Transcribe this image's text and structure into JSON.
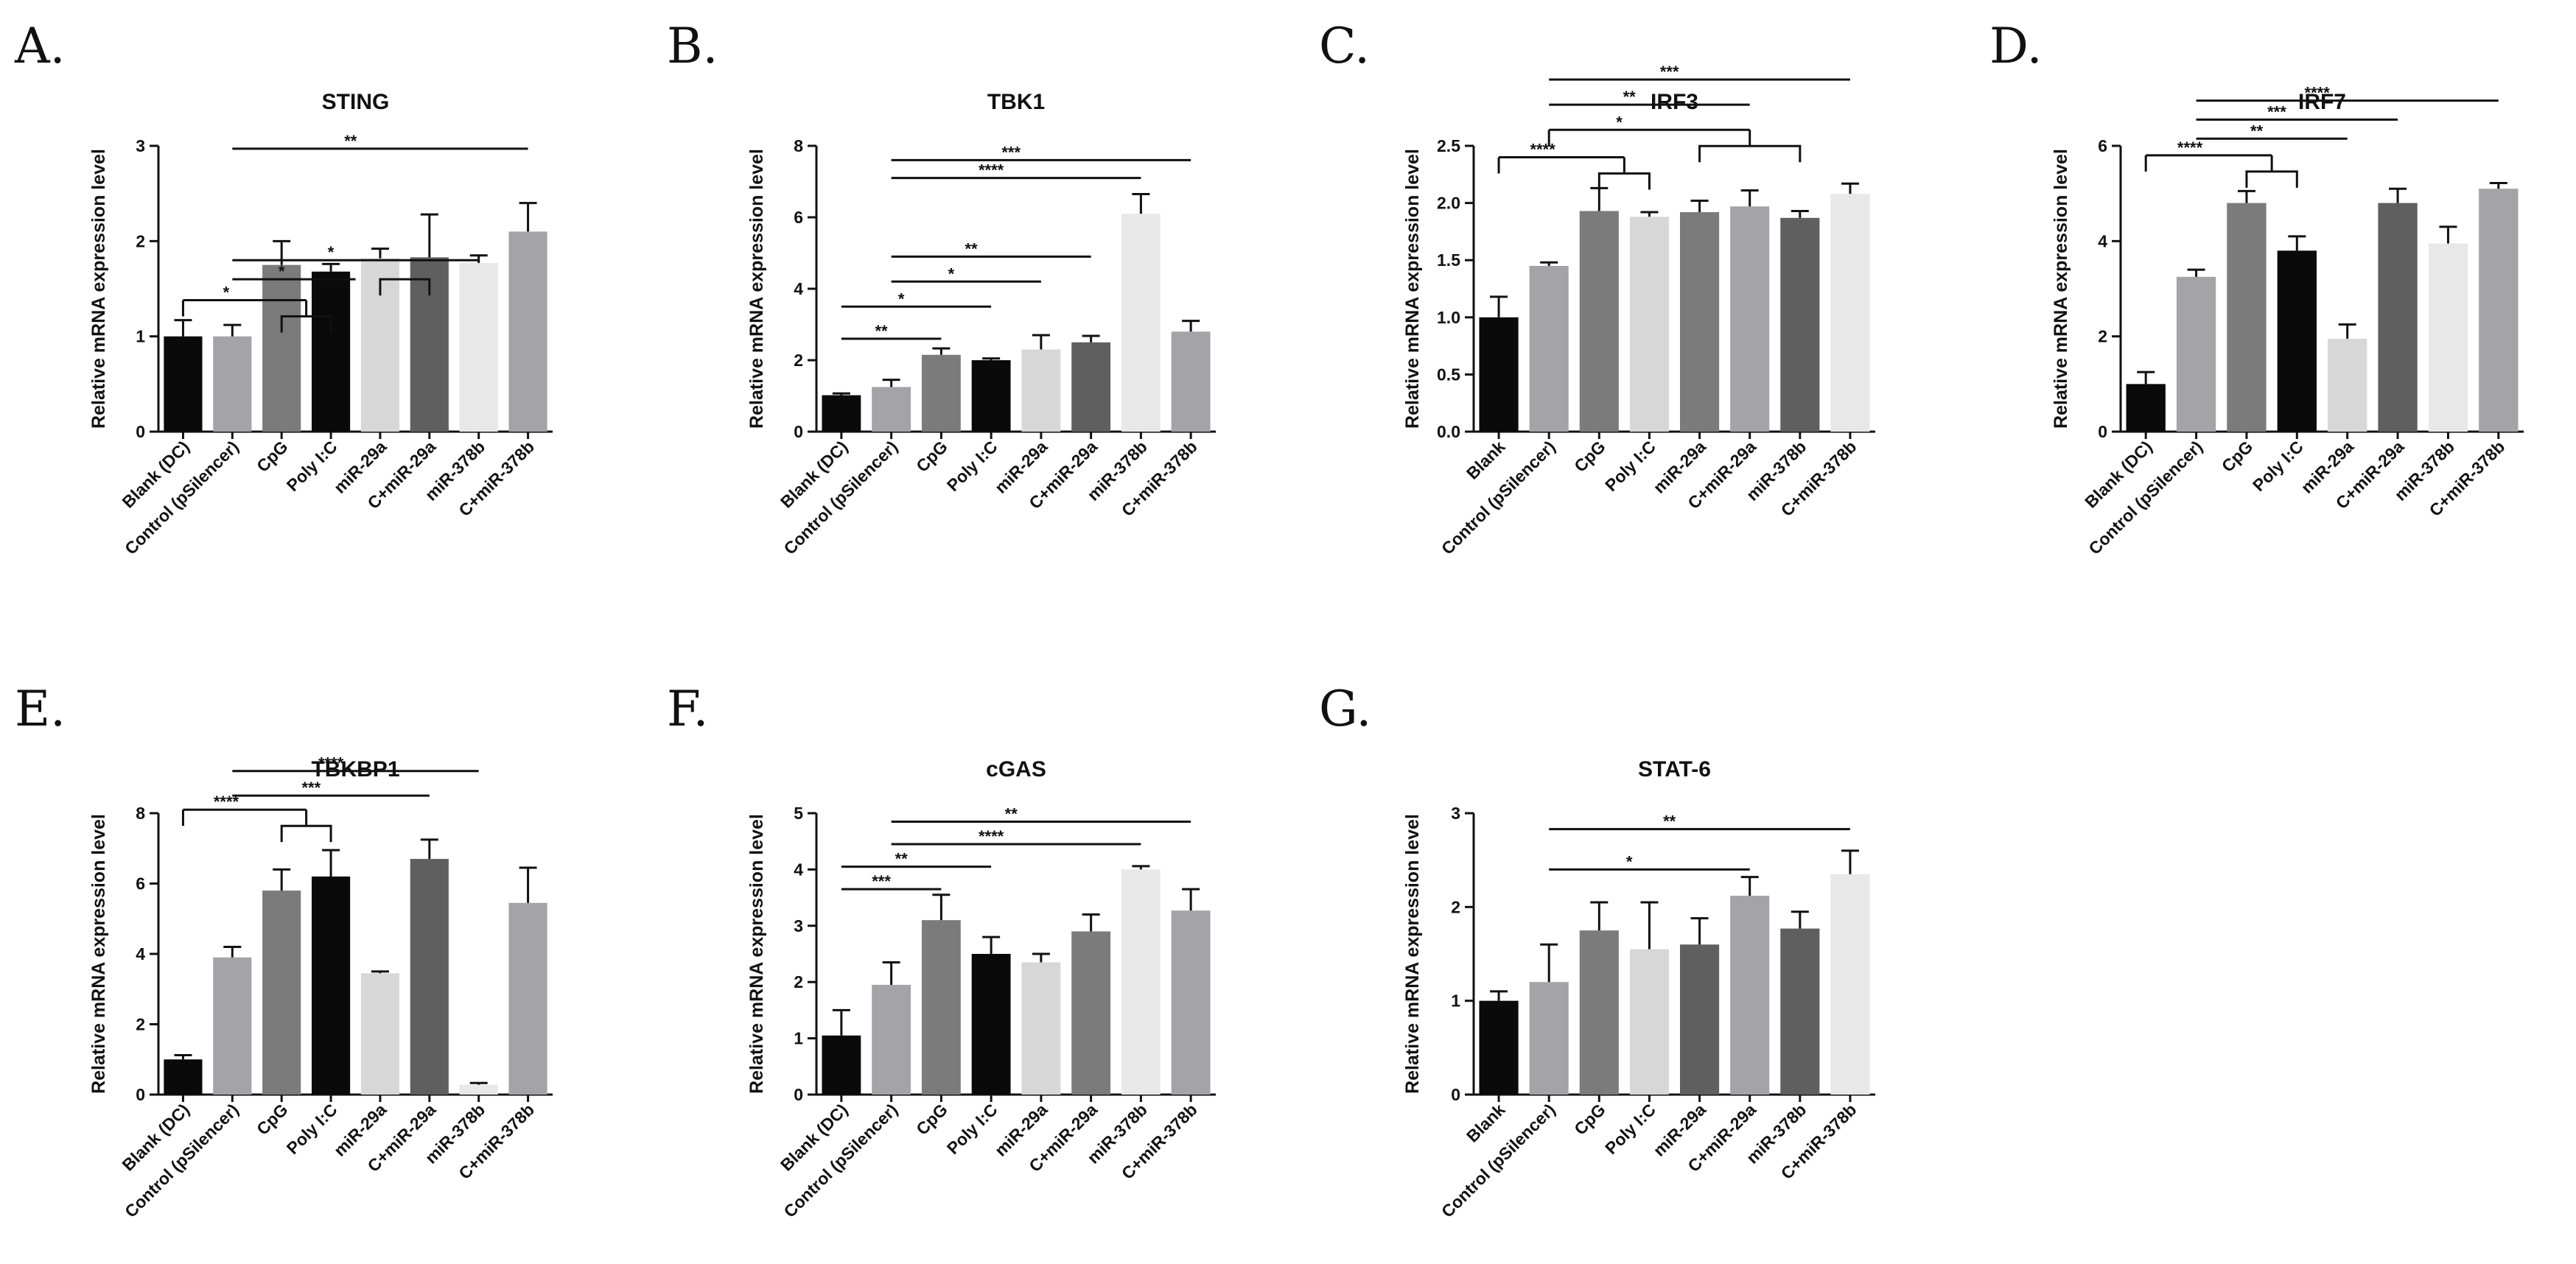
{
  "figure": {
    "colors": {
      "black": "#0a0a0a",
      "mid_gray": "#a3a3a8",
      "dark_gray": "#7b7b7b",
      "light_gray": "#d7d7d7",
      "charcoal": "#5f5f5f",
      "very_light": "#e8e8e8"
    }
  },
  "chart_data": [
    {
      "letter": "A.",
      "type": "bar",
      "title": "STING",
      "ylabel": "Relative mRNA expression level",
      "ylim": [
        0,
        3
      ],
      "yticks": [
        "0",
        "1",
        "2",
        "3"
      ],
      "categories": [
        "Blank (DC)",
        "Control (pSilencer)",
        "CpG",
        "Poly I:C",
        "miR-29a",
        "C+miR-29a",
        "miR-378b",
        "C+miR-378b"
      ],
      "values": [
        1.0,
        1.0,
        1.75,
        1.68,
        1.82,
        1.83,
        1.77,
        2.1
      ],
      "errors": [
        0.17,
        0.12,
        0.25,
        0.08,
        0.1,
        0.45,
        0.08,
        0.3
      ],
      "colors": [
        "#0a0a0a",
        "#a3a3a8",
        "#7b7b7b",
        "#0a0a0a",
        "#d7d7d7",
        "#5f5f5f",
        "#e8e8e8",
        "#a3a3a8"
      ],
      "significance": [
        {
          "type": "line",
          "from": 1,
          "to": 7,
          "y": 2.97,
          "label": "**"
        },
        {
          "type": "line",
          "from": 1,
          "to": 6,
          "y": 1.8,
          "label": "*"
        },
        {
          "type": "line",
          "from": 1,
          "to": 3.5,
          "y": 1.6,
          "label": "*"
        },
        {
          "type": "group",
          "a": [
            0,
            0
          ],
          "b": [
            2,
            3
          ],
          "y": 1.38,
          "label": "*"
        },
        {
          "type": "bracket",
          "from": 4,
          "to": 5,
          "y": 1.6
        }
      ]
    },
    {
      "letter": "B.",
      "type": "bar",
      "title": "TBK1",
      "ylabel": "Relative mRNA expression level",
      "ylim": [
        0,
        8
      ],
      "yticks": [
        "0",
        "2",
        "4",
        "6",
        "8"
      ],
      "categories": [
        "Blank (DC)",
        "Control (pSilencer)",
        "CpG",
        "Poly I:C",
        "miR-29a",
        "C+miR-29a",
        "miR-378b",
        "C+miR-378b"
      ],
      "values": [
        1.02,
        1.25,
        2.15,
        2.0,
        2.3,
        2.5,
        6.1,
        2.8
      ],
      "errors": [
        0.05,
        0.2,
        0.18,
        0.05,
        0.4,
        0.18,
        0.55,
        0.3
      ],
      "colors": [
        "#0a0a0a",
        "#a3a3a8",
        "#7b7b7b",
        "#0a0a0a",
        "#d7d7d7",
        "#5f5f5f",
        "#e8e8e8",
        "#a3a3a8"
      ],
      "significance": [
        {
          "type": "line",
          "from": 1,
          "to": 7,
          "y": 7.6,
          "label": "***"
        },
        {
          "type": "line",
          "from": 1,
          "to": 6,
          "y": 7.1,
          "label": "****"
        },
        {
          "type": "line",
          "from": 1,
          "to": 5,
          "y": 4.9,
          "label": "**"
        },
        {
          "type": "line",
          "from": 1,
          "to": 4,
          "y": 4.2,
          "label": "*"
        },
        {
          "type": "line",
          "from": 0,
          "to": 3,
          "y": 3.5,
          "label": "*"
        },
        {
          "type": "line",
          "from": 0,
          "to": 2,
          "y": 2.6,
          "label": "**"
        }
      ]
    },
    {
      "letter": "C.",
      "type": "bar",
      "title": "IRF3",
      "ylabel": "Relative mRNA expression level",
      "ylim": [
        0,
        2.5
      ],
      "yticks": [
        "0.0",
        "0.5",
        "1.0",
        "1.5",
        "2.0",
        "2.5"
      ],
      "categories": [
        "Blank",
        "Control (pSilencer)",
        "CpG",
        "Poly I:C",
        "miR-29a",
        "C+miR-29a",
        "miR-378b",
        "C+miR-378b"
      ],
      "values": [
        1.0,
        1.45,
        1.93,
        1.88,
        1.92,
        1.97,
        1.87,
        2.08
      ],
      "errors": [
        0.18,
        0.03,
        0.2,
        0.04,
        0.1,
        0.14,
        0.06,
        0.09
      ],
      "colors": [
        "#0a0a0a",
        "#a3a3a8",
        "#7b7b7b",
        "#d7d7d7",
        "#7b7b7b",
        "#a3a3a8",
        "#5f5f5f",
        "#e8e8e8"
      ],
      "significance": [
        {
          "type": "line",
          "from": 1,
          "to": 7,
          "y": 3.08,
          "label": "***"
        },
        {
          "type": "line",
          "from": 1,
          "to": 5,
          "y": 2.86,
          "label": "**"
        },
        {
          "type": "group",
          "a": [
            1,
            1
          ],
          "b": [
            4,
            6
          ],
          "y": 2.64,
          "label": "*"
        },
        {
          "type": "group",
          "a": [
            0,
            0
          ],
          "b": [
            2,
            3
          ],
          "y": 2.4,
          "label": "****"
        }
      ]
    },
    {
      "letter": "D.",
      "type": "bar",
      "title": "IRF7",
      "ylabel": "Relative mRNA expression level",
      "ylim": [
        0,
        6
      ],
      "yticks": [
        "0",
        "2",
        "4",
        "6"
      ],
      "categories": [
        "Blank (DC)",
        "Control (pSilencer)",
        "CpG",
        "Poly I:C",
        "miR-29a",
        "C+miR-29a",
        "miR-378b",
        "C+miR-378b"
      ],
      "values": [
        1.0,
        3.25,
        4.8,
        3.8,
        1.95,
        4.8,
        3.95,
        5.1
      ],
      "errors": [
        0.25,
        0.15,
        0.25,
        0.3,
        0.3,
        0.3,
        0.35,
        0.12
      ],
      "colors": [
        "#0a0a0a",
        "#a3a3a8",
        "#7b7b7b",
        "#0a0a0a",
        "#d7d7d7",
        "#5f5f5f",
        "#e8e8e8",
        "#a3a3a8"
      ],
      "significance": [
        {
          "type": "line",
          "from": 1,
          "to": 7,
          "y": 6.95,
          "label": "****"
        },
        {
          "type": "line",
          "from": 1,
          "to": 5,
          "y": 6.55,
          "label": "***"
        },
        {
          "type": "line",
          "from": 1,
          "to": 4,
          "y": 6.15,
          "label": "**"
        },
        {
          "type": "group",
          "a": [
            0,
            0
          ],
          "b": [
            2,
            3
          ],
          "y": 5.8,
          "label": "****"
        }
      ]
    },
    {
      "letter": "E.",
      "type": "bar",
      "title": "TBKBP1",
      "ylabel": "Relative mRNA expression level",
      "ylim": [
        0,
        8
      ],
      "yticks": [
        "0",
        "2",
        "4",
        "6",
        "8"
      ],
      "categories": [
        "Blank (DC)",
        "Control (pSilencer)",
        "CpG",
        "Poly I:C",
        "miR-29a",
        "C+miR-29a",
        "miR-378b",
        "C+miR-378b"
      ],
      "values": [
        1.0,
        3.9,
        5.8,
        6.2,
        3.45,
        6.7,
        0.28,
        5.45
      ],
      "errors": [
        0.12,
        0.3,
        0.6,
        0.75,
        0.05,
        0.55,
        0.05,
        1.0
      ],
      "colors": [
        "#0a0a0a",
        "#a3a3a8",
        "#7b7b7b",
        "#0a0a0a",
        "#d7d7d7",
        "#5f5f5f",
        "#e8e8e8",
        "#a3a3a8"
      ],
      "significance": [
        {
          "type": "line",
          "from": 1,
          "to": 6,
          "y": 9.2,
          "label": "****"
        },
        {
          "type": "line",
          "from": 1,
          "to": 5,
          "y": 8.5,
          "label": "***"
        },
        {
          "type": "group",
          "a": [
            0,
            0
          ],
          "b": [
            2,
            3
          ],
          "y": 8.1,
          "label": "****"
        }
      ]
    },
    {
      "letter": "F.",
      "type": "bar",
      "title": "cGAS",
      "ylabel": "Relative mRNA expression level",
      "ylim": [
        0,
        5
      ],
      "yticks": [
        "0",
        "1",
        "2",
        "3",
        "4",
        "5"
      ],
      "categories": [
        "Blank (DC)",
        "Control (pSilencer)",
        "CpG",
        "Poly I:C",
        "miR-29a",
        "C+miR-29a",
        "miR-378b",
        "C+miR-378b"
      ],
      "values": [
        1.05,
        1.95,
        3.1,
        2.5,
        2.35,
        2.9,
        4.0,
        3.27
      ],
      "errors": [
        0.45,
        0.4,
        0.45,
        0.3,
        0.15,
        0.3,
        0.06,
        0.38
      ],
      "colors": [
        "#0a0a0a",
        "#a3a3a8",
        "#7b7b7b",
        "#0a0a0a",
        "#d7d7d7",
        "#7b7b7b",
        "#e8e8e8",
        "#a3a3a8"
      ],
      "significance": [
        {
          "type": "line",
          "from": 1,
          "to": 7,
          "y": 4.85,
          "label": "**"
        },
        {
          "type": "line",
          "from": 1,
          "to": 6,
          "y": 4.45,
          "label": "****"
        },
        {
          "type": "line",
          "from": 0,
          "to": 3,
          "y": 4.05,
          "label": "**"
        },
        {
          "type": "line",
          "from": 0,
          "to": 2,
          "y": 3.65,
          "label": "***"
        }
      ]
    },
    {
      "letter": "G.",
      "type": "bar",
      "title": "STAT-6",
      "ylabel": "Relative mRNA expression level",
      "ylim": [
        0,
        3
      ],
      "yticks": [
        "0",
        "1",
        "2",
        "3"
      ],
      "categories": [
        "Blank",
        "Control (pSilencer)",
        "CpG",
        "Poly I:C",
        "miR-29a",
        "C+miR-29a",
        "miR-378b",
        "C+miR-378b"
      ],
      "values": [
        1.0,
        1.2,
        1.75,
        1.55,
        1.6,
        2.12,
        1.77,
        2.35
      ],
      "errors": [
        0.1,
        0.4,
        0.3,
        0.5,
        0.28,
        0.2,
        0.18,
        0.25
      ],
      "colors": [
        "#0a0a0a",
        "#a3a3a8",
        "#7b7b7b",
        "#d7d7d7",
        "#5f5f5f",
        "#a3a3a8",
        "#5f5f5f",
        "#e8e8e8"
      ],
      "significance": [
        {
          "type": "line",
          "from": 1,
          "to": 7,
          "y": 2.83,
          "label": "**"
        },
        {
          "type": "line",
          "from": 1,
          "to": 5,
          "y": 2.4,
          "label": "*"
        }
      ]
    }
  ]
}
